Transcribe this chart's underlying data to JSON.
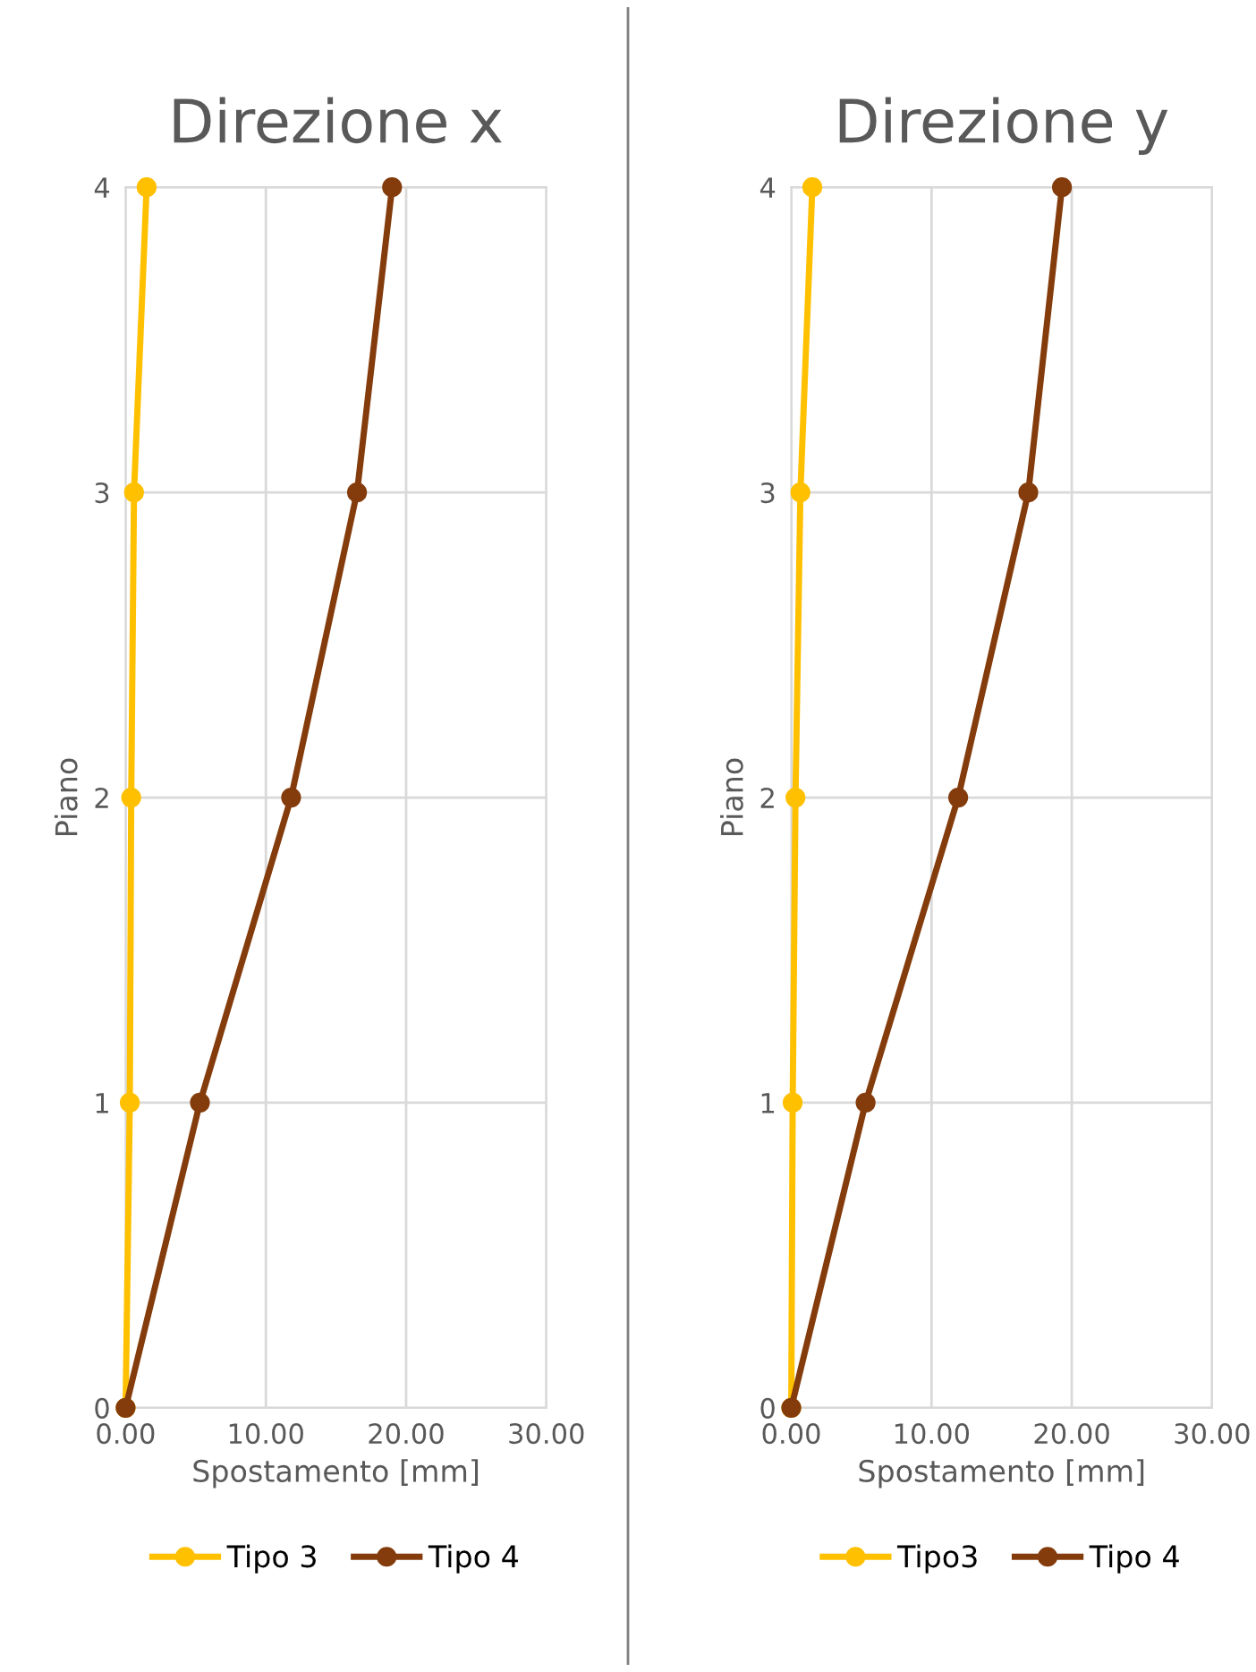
{
  "chart_data": [
    {
      "type": "line",
      "title": "Direzione x",
      "xlabel": "Spostamento [mm]",
      "ylabel": "Piano",
      "xlim": [
        0,
        30
      ],
      "xticks": [
        {
          "value": 0,
          "label": "0.00"
        },
        {
          "value": 10,
          "label": "10.00"
        },
        {
          "value": 20,
          "label": "20.00"
        },
        {
          "value": 30,
          "label": "30.00"
        }
      ],
      "ylim": [
        0,
        4
      ],
      "yticks": [
        0,
        1,
        2,
        3,
        4
      ],
      "grid": true,
      "legend": "bottom",
      "marker": "circle",
      "line_style": "solid",
      "series": [
        {
          "name": "Tipo 3",
          "color": "#ffc000",
          "x": [
            0,
            0.3,
            0.4,
            0.6,
            1.5
          ],
          "values": [
            0,
            1,
            2,
            3,
            4
          ]
        },
        {
          "name": "Tipo 4",
          "color": "#843c0c",
          "x": [
            0,
            5.3,
            11.8,
            16.5,
            19.0
          ],
          "values": [
            0,
            1,
            2,
            3,
            4
          ]
        }
      ]
    },
    {
      "type": "line",
      "title": "Direzione y",
      "xlabel": "Spostamento [mm]",
      "ylabel": "Piano",
      "xlim": [
        0,
        30
      ],
      "xticks": [
        {
          "value": 0,
          "label": "0.00"
        },
        {
          "value": 10,
          "label": "10.00"
        },
        {
          "value": 20,
          "label": "20.00"
        },
        {
          "value": 30,
          "label": "30.00"
        }
      ],
      "ylim": [
        0,
        4
      ],
      "yticks": [
        0,
        1,
        2,
        3,
        4
      ],
      "grid": true,
      "legend": "bottom",
      "marker": "circle",
      "line_style": "solid",
      "series": [
        {
          "name": "Tipo3",
          "color": "#ffc000",
          "x": [
            0,
            0.1,
            0.3,
            0.65,
            1.5
          ],
          "values": [
            0,
            1,
            2,
            3,
            4
          ]
        },
        {
          "name": "Tipo 4",
          "color": "#843c0c",
          "x": [
            0,
            5.3,
            11.9,
            16.9,
            19.3
          ],
          "values": [
            0,
            1,
            2,
            3,
            4
          ]
        }
      ]
    }
  ]
}
